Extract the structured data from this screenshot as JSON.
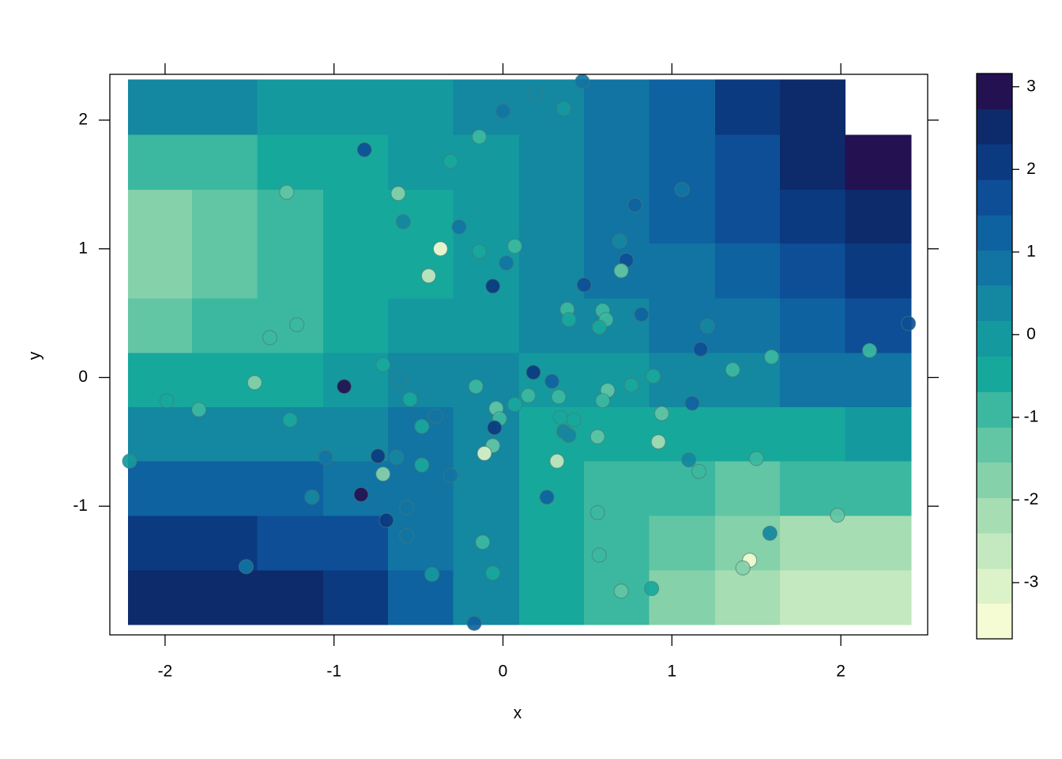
{
  "chart_data": {
    "type": "contour-scatter",
    "xlabel": "x",
    "ylabel": "y",
    "xlim": [
      -2.327,
      2.514
    ],
    "ylim": [
      -2.0,
      2.356
    ],
    "xticks": [
      -2,
      -1,
      0,
      1,
      2
    ],
    "yticks": [
      -1,
      0,
      1,
      2
    ],
    "zlim": [
      -3.68,
      3.16
    ],
    "zticks": [
      -3,
      -2,
      -1,
      0,
      1,
      2,
      3
    ],
    "levels": [
      -3.68,
      -3.25,
      -2.83,
      -2.4,
      -1.97,
      -1.54,
      -1.12,
      -0.69,
      -0.26,
      0.17,
      0.6,
      1.02,
      1.45,
      1.88,
      2.31,
      2.73,
      3.16
    ],
    "colors": [
      "#f5fbd3",
      "#dcf2c8",
      "#c4e8bf",
      "#a6ddb3",
      "#85d1aa",
      "#62c6a4",
      "#3cb8a0",
      "#17a89c",
      "#14999f",
      "#1487a1",
      "#1174a3",
      "#0f62a0",
      "#0d4e96",
      "#0b3a80",
      "#0d2a6b",
      "#231151"
    ],
    "grid_x": [
      -2.03,
      -1.65,
      -1.26,
      -0.87,
      -0.49,
      -0.1,
      0.29,
      0.67,
      1.06,
      1.45,
      1.83,
      2.22
    ],
    "grid_y": [
      2.1,
      1.67,
      1.25,
      0.83,
      0.4,
      -0.02,
      -0.44,
      -0.86,
      -1.29,
      -1.71
    ],
    "grid_z": [
      [
        0.3,
        0.2,
        0.1,
        0.1,
        0.1,
        0.3,
        0.5,
        0.9,
        1.4,
        1.9,
        2.6,
        null
      ],
      [
        -0.8,
        -0.7,
        -0.5,
        -0.3,
        -0.1,
        0.1,
        0.4,
        0.8,
        1.3,
        1.8,
        2.4,
        2.9
      ],
      [
        -1.8,
        -1.4,
        -0.9,
        -0.5,
        -0.3,
        0.0,
        0.4,
        0.7,
        1.1,
        1.6,
        2.1,
        2.6
      ],
      [
        -1.9,
        -1.5,
        -1.0,
        -0.6,
        -0.3,
        0.0,
        0.3,
        0.6,
        0.9,
        1.3,
        1.8,
        2.2
      ],
      [
        -1.3,
        -1.0,
        -0.8,
        -0.5,
        -0.1,
        0.1,
        0.2,
        0.4,
        0.7,
        1.0,
        1.3,
        1.6
      ],
      [
        -0.4,
        -0.4,
        -0.3,
        -0.1,
        0.2,
        0.2,
        0.0,
        0.0,
        0.2,
        0.4,
        0.6,
        0.8
      ],
      [
        0.5,
        0.5,
        0.5,
        0.5,
        0.6,
        0.4,
        -0.3,
        -0.5,
        -0.5,
        -0.4,
        -0.3,
        -0.2
      ],
      [
        1.2,
        1.2,
        1.2,
        1.0,
        0.8,
        0.2,
        -0.5,
        -0.8,
        -1.1,
        -1.2,
        -1.1,
        -1.0
      ],
      [
        1.9,
        2.0,
        1.8,
        1.5,
        1.0,
        0.4,
        -0.5,
        -0.9,
        -1.5,
        -1.9,
        -2.0,
        -2.0
      ],
      [
        2.4,
        2.6,
        2.5,
        2.0,
        1.2,
        0.5,
        -0.4,
        -1.0,
        -1.6,
        -2.1,
        -2.5,
        -2.7
      ]
    ],
    "x": [
      0.47,
      0.19,
      0.36,
      0.0,
      -0.14,
      -0.82,
      -0.31,
      -1.28,
      -0.62,
      1.06,
      -0.59,
      0.78,
      -0.26,
      0.69,
      -0.37,
      0.07,
      -0.14,
      0.73,
      0.02,
      0.7,
      -0.44,
      -0.06,
      0.48,
      0.38,
      0.59,
      0.39,
      0.61,
      0.82,
      0.57,
      1.21,
      -1.22,
      -1.38,
      1.17,
      2.4,
      2.17,
      1.59,
      1.36,
      -0.71,
      0.18,
      -0.61,
      -0.94,
      -1.47,
      -1.99,
      -1.8,
      0.29,
      -0.16,
      0.89,
      0.76,
      0.62,
      0.33,
      0.15,
      0.07,
      -0.04,
      0.59,
      -0.55,
      -0.4,
      0.94,
      1.12,
      -1.26,
      -0.48,
      -0.02,
      -0.05,
      0.34,
      0.42,
      0.36,
      0.39,
      0.56,
      0.92,
      -0.06,
      -0.11,
      -0.74,
      -0.63,
      -1.05,
      -2.21,
      0.32,
      1.1,
      1.5,
      -0.48,
      -0.71,
      1.16,
      -0.31,
      -0.84,
      0.26,
      -1.13,
      -0.57,
      0.56,
      1.98,
      -0.69,
      1.58,
      -0.57,
      -0.12,
      1.46,
      1.42,
      0.57,
      -1.52,
      -0.06,
      -0.42,
      0.88,
      0.7,
      -0.17
    ],
    "y": [
      2.3,
      2.2,
      2.09,
      2.07,
      1.87,
      1.77,
      1.68,
      1.44,
      1.43,
      1.46,
      1.21,
      1.34,
      1.17,
      1.06,
      1.0,
      1.02,
      0.98,
      0.91,
      0.89,
      0.83,
      0.79,
      0.71,
      0.72,
      0.53,
      0.52,
      0.45,
      0.45,
      0.49,
      0.39,
      0.4,
      0.41,
      0.31,
      0.22,
      0.42,
      0.21,
      0.16,
      0.06,
      0.1,
      0.04,
      -0.02,
      -0.07,
      -0.04,
      -0.18,
      -0.25,
      -0.03,
      -0.07,
      0.01,
      -0.06,
      -0.1,
      -0.15,
      -0.14,
      -0.21,
      -0.24,
      -0.18,
      -0.17,
      -0.3,
      -0.28,
      -0.2,
      -0.33,
      -0.38,
      -0.32,
      -0.39,
      -0.31,
      -0.33,
      -0.42,
      -0.45,
      -0.46,
      -0.5,
      -0.53,
      -0.59,
      -0.61,
      -0.62,
      -0.62,
      -0.65,
      -0.65,
      -0.64,
      -0.63,
      -0.68,
      -0.75,
      -0.73,
      -0.76,
      -0.91,
      -0.93,
      -0.93,
      -1.01,
      -1.05,
      -1.07,
      -1.11,
      -1.21,
      -1.23,
      -1.28,
      -1.42,
      -1.48,
      -1.38,
      -1.47,
      -1.52,
      -1.53,
      -1.64,
      -1.66,
      -1.91
    ],
    "z": [
      0.7,
      0.5,
      0.0,
      0.6,
      -0.8,
      1.7,
      -0.5,
      -1.2,
      -1.6,
      0.8,
      0.3,
      1.3,
      1.0,
      0.4,
      -3.3,
      -0.9,
      -0.4,
      1.6,
      0.9,
      -1.3,
      -2.6,
      1.9,
      1.5,
      -0.8,
      -0.9,
      -0.6,
      -1.0,
      1.4,
      -0.4,
      0.4,
      -0.9,
      -0.9,
      1.6,
      1.8,
      -0.7,
      -0.8,
      -1.1,
      -0.6,
      1.9,
      0.2,
      3.1,
      -1.7,
      -0.6,
      -0.8,
      1.2,
      -0.8,
      -0.6,
      -0.3,
      -1.2,
      -0.9,
      -0.7,
      -0.6,
      -1.3,
      -0.7,
      -0.3,
      0.7,
      -1.4,
      1.1,
      -0.3,
      -0.3,
      -0.7,
      2.0,
      -0.6,
      -0.6,
      0.4,
      0.2,
      -1.3,
      -2.0,
      -1.5,
      -2.9,
      2.2,
      0.2,
      0.9,
      -0.1,
      -2.8,
      0.4,
      -1.1,
      -0.6,
      -1.6,
      -0.8,
      1.0,
      2.8,
      1.1,
      0.4,
      1.0,
      -1.1,
      -1.4,
      2.2,
      0.2,
      0.8,
      -0.9,
      -3.4,
      -1.6,
      -0.8,
      0.9,
      -0.3,
      -0.1,
      -0.6,
      -1.2,
      1.3
    ]
  }
}
